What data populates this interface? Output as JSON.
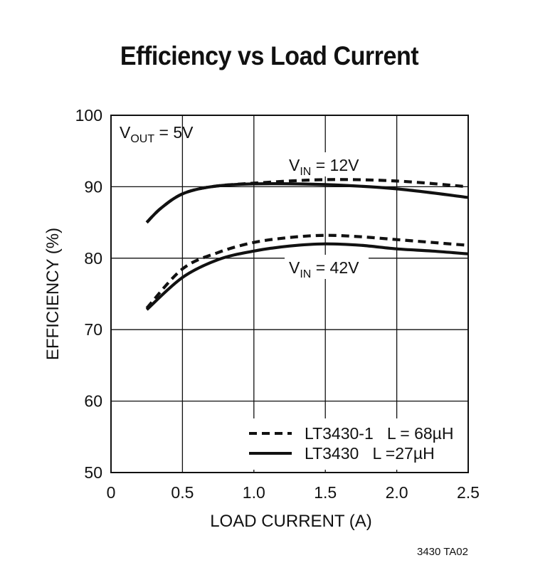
{
  "chart_data": {
    "type": "line",
    "title": "Efficiency vs Load Current",
    "xlabel": "LOAD CURRENT (A)",
    "ylabel": "EFFICIENCY (%)",
    "xlim": [
      0,
      2.5
    ],
    "ylim": [
      50,
      100
    ],
    "xticks": [
      {
        "value": 0,
        "label": "0"
      },
      {
        "value": 0.5,
        "label": "0.5"
      },
      {
        "value": 1.0,
        "label": "1.0"
      },
      {
        "value": 1.5,
        "label": "1.5"
      },
      {
        "value": 2.0,
        "label": "2.0"
      },
      {
        "value": 2.5,
        "label": "2.5"
      }
    ],
    "yticks": [
      {
        "value": 50,
        "label": "50"
      },
      {
        "value": 60,
        "label": "60"
      },
      {
        "value": 70,
        "label": "70"
      },
      {
        "value": 80,
        "label": "80"
      },
      {
        "value": 90,
        "label": "90"
      },
      {
        "value": 100,
        "label": "100"
      }
    ],
    "grid": true,
    "series": [
      {
        "name": "LT3430-1 L = 68µH (VIN = 12V)",
        "style": "dashed",
        "condition": "VIN = 12V",
        "x": [
          0.25,
          0.35,
          0.5,
          0.7,
          1.0,
          1.5,
          2.0,
          2.5
        ],
        "y": [
          85.0,
          87.0,
          89.0,
          90.0,
          90.5,
          91.0,
          90.8,
          90.0
        ]
      },
      {
        "name": "LT3430 L =27µH (VIN = 12V)",
        "style": "solid",
        "condition": "VIN = 12V",
        "x": [
          0.25,
          0.35,
          0.5,
          0.7,
          1.0,
          1.5,
          2.0,
          2.5
        ],
        "y": [
          85.0,
          87.0,
          89.0,
          90.0,
          90.4,
          90.3,
          89.7,
          88.5
        ]
      },
      {
        "name": "LT3430-1 L = 68µH (VIN = 42V)",
        "style": "dashed",
        "condition": "VIN = 42V",
        "x": [
          0.25,
          0.5,
          0.75,
          1.0,
          1.25,
          1.5,
          1.75,
          2.0,
          2.25,
          2.5
        ],
        "y": [
          73.0,
          78.5,
          80.8,
          82.2,
          82.9,
          83.2,
          83.0,
          82.6,
          82.2,
          81.8
        ]
      },
      {
        "name": "LT3430 L =27µH (VIN = 42V)",
        "style": "solid",
        "condition": "VIN = 42V",
        "x": [
          0.25,
          0.5,
          0.75,
          1.0,
          1.25,
          1.5,
          1.75,
          2.0,
          2.25,
          2.5
        ],
        "y": [
          72.8,
          77.3,
          79.8,
          81.0,
          81.7,
          82.0,
          81.8,
          81.3,
          81.0,
          80.6
        ]
      }
    ],
    "annotations": {
      "vout": {
        "main": "V",
        "sub": "OUT",
        "rest": " = 5V"
      },
      "vin12": {
        "main": "V",
        "sub": "IN",
        "rest": " = 12V"
      },
      "vin42": {
        "main": "V",
        "sub": "IN",
        "rest": " = 42V"
      }
    },
    "legend": {
      "position": "bottom-right",
      "entries": [
        {
          "style": "dashed",
          "label": "LT3430-1   L = 68µH"
        },
        {
          "style": "solid",
          "label": "LT3430   L =27µH"
        }
      ]
    },
    "figure_id": "3430 TA02"
  }
}
